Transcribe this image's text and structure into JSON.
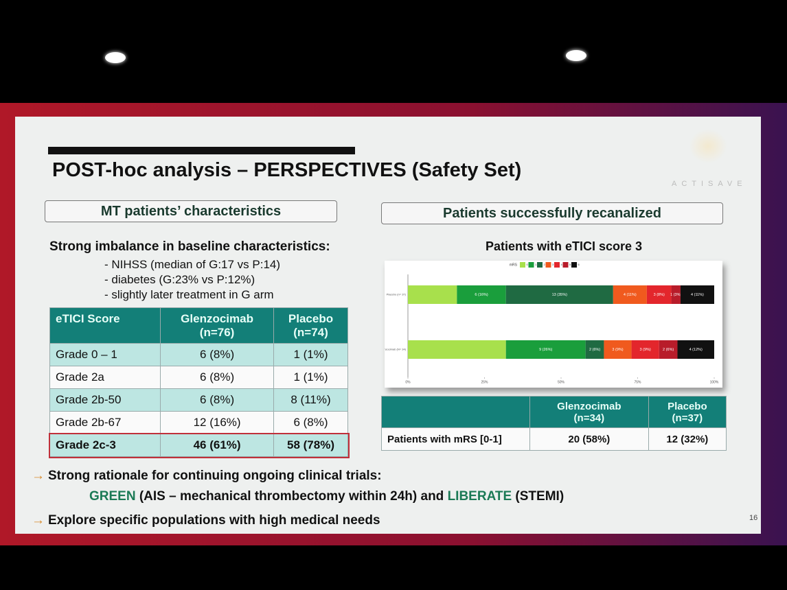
{
  "header": {
    "title": "POST-hoc analysis – PERSPECTIVES (Safety Set)",
    "logo": "ACTISAVE"
  },
  "left": {
    "box": "MT patients’ characteristics",
    "lead": "Strong imbalance in baseline characteristics:",
    "bullets": [
      "- NIHSS (median of G:17 vs P:14)",
      "- diabetes (G:23% vs P:12%)",
      "- slightly later treatment in G arm"
    ],
    "table": {
      "header": [
        [
          "eTICI Score"
        ],
        [
          "Glenzocimab",
          "(n=76)"
        ],
        [
          "Placebo",
          "(n=74)"
        ]
      ],
      "rows": [
        [
          "Grade 0 – 1",
          "6 (8%)",
          "1 (1%)"
        ],
        [
          "Grade 2a",
          "6 (8%)",
          "1 (1%)"
        ],
        [
          "Grade 2b-50",
          "6 (8%)",
          "8 (11%)"
        ],
        [
          "Grade 2b-67",
          "12 (16%)",
          "6 (8%)"
        ],
        [
          "Grade 2c-3",
          "46 (61%)",
          "58 (78%)"
        ]
      ]
    }
  },
  "right": {
    "box": "Patients successfully recanalized",
    "table": {
      "header": [
        [
          "Glenzocimab",
          "(n=34)"
        ],
        [
          "Placebo",
          "(n=37)"
        ]
      ],
      "rows": [
        [
          "Patients with mRS [0-1]",
          "20 (58%)",
          "12 (32%)"
        ]
      ]
    }
  },
  "chart_data": {
    "type": "stacked_barh",
    "title": "Patients with eTICI score 3",
    "legend_title": "mRS",
    "categories": [
      "Placebo (n= 37)",
      "Glenzocimab (N= 34)"
    ],
    "xlim": [
      0,
      100
    ],
    "xticks": [
      {
        "value": 0,
        "label": "0%"
      },
      {
        "value": 25,
        "label": "25%"
      },
      {
        "value": 50,
        "label": "50%"
      },
      {
        "value": 75,
        "label": "75%"
      },
      {
        "value": 100,
        "label": "100%"
      }
    ],
    "series": [
      {
        "name": "0",
        "color": "#a8e04c",
        "values": [
          16,
          32
        ],
        "value_labels": [
          null,
          null
        ]
      },
      {
        "name": "1",
        "color": "#1a9e3c",
        "values": [
          16,
          26
        ],
        "value_labels": [
          "6 (16%)",
          "9 (26%)"
        ]
      },
      {
        "name": "2",
        "color": "#1f6a42",
        "values": [
          35,
          6
        ],
        "value_labels": [
          "13 (35%)",
          "2 (6%)"
        ]
      },
      {
        "name": "3",
        "color": "#f05a1e",
        "values": [
          11,
          9
        ],
        "value_labels": [
          "4 (11%)",
          "3 (9%)"
        ]
      },
      {
        "name": "4",
        "color": "#e3262c",
        "values": [
          8,
          9
        ],
        "value_labels": [
          "3 (8%)",
          "3 (9%)"
        ]
      },
      {
        "name": "5",
        "color": "#b81c2a",
        "values": [
          3,
          6
        ],
        "value_labels": [
          "1 (3%)",
          "2 (6%)"
        ]
      },
      {
        "name": "6",
        "color": "#111111",
        "values": [
          11,
          12
        ],
        "value_labels": [
          "4 (11%)",
          "4 (12%)"
        ]
      }
    ]
  },
  "footer": {
    "line1": "Strong rationale for continuing ongoing clinical trials:",
    "line2": [
      "GREEN",
      " (AIS – mechanical thrombectomy within 24h) and ",
      "LIBERATE",
      " (STEMI)"
    ],
    "line3": "Explore specific populations with high medical needs",
    "page": "16"
  }
}
